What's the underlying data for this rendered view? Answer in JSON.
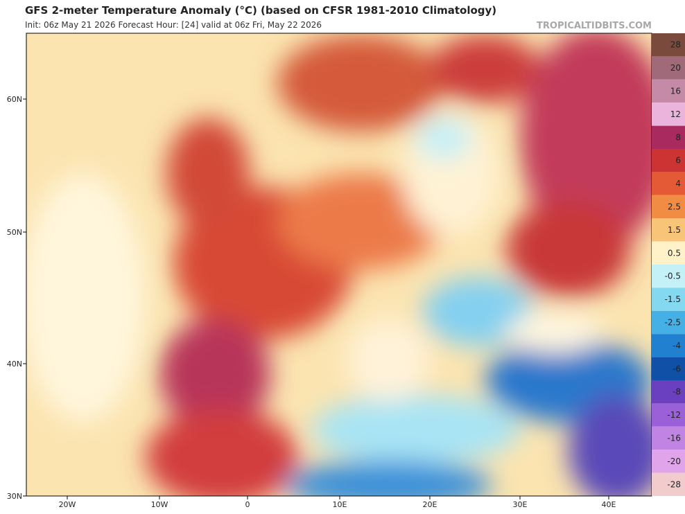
{
  "header": {
    "title": "GFS 2-meter Temperature Anomaly (°C) (based on CFSR 1981-2010 Climatology)",
    "subtitle": "Init: 06z May 21 2026   Forecast Hour: [24]   valid at 06z Fri, May 22 2026",
    "watermark": "TROPICALTIDBITS.COM"
  },
  "map": {
    "lat_labels": [
      "60N",
      "50N",
      "40N",
      "30N"
    ],
    "lon_labels": [
      "20W",
      "10W",
      "0",
      "10E",
      "20E",
      "30E",
      "40E"
    ]
  },
  "colorbar": {
    "labels": [
      "28",
      "20",
      "16",
      "12",
      "8",
      "6",
      "4",
      "2.5",
      "1.5",
      "0.5",
      "-0.5",
      "-1.5",
      "-2.5",
      "-4",
      "-6",
      "-8",
      "-12",
      "-16",
      "-20",
      "-28"
    ],
    "colors": [
      "#7a4a3c",
      "#a06a7a",
      "#c48aa6",
      "#eab4dc",
      "#a82a5e",
      "#cc3434",
      "#e45a36",
      "#f08c44",
      "#f8c478",
      "#fff2c8",
      "#c4f0f8",
      "#84d8f0",
      "#44b0e6",
      "#2280d0",
      "#1050a6",
      "#6a40c0",
      "#9a60d8",
      "#c084e2",
      "#e0a4ea",
      "#f2cccc"
    ]
  }
}
